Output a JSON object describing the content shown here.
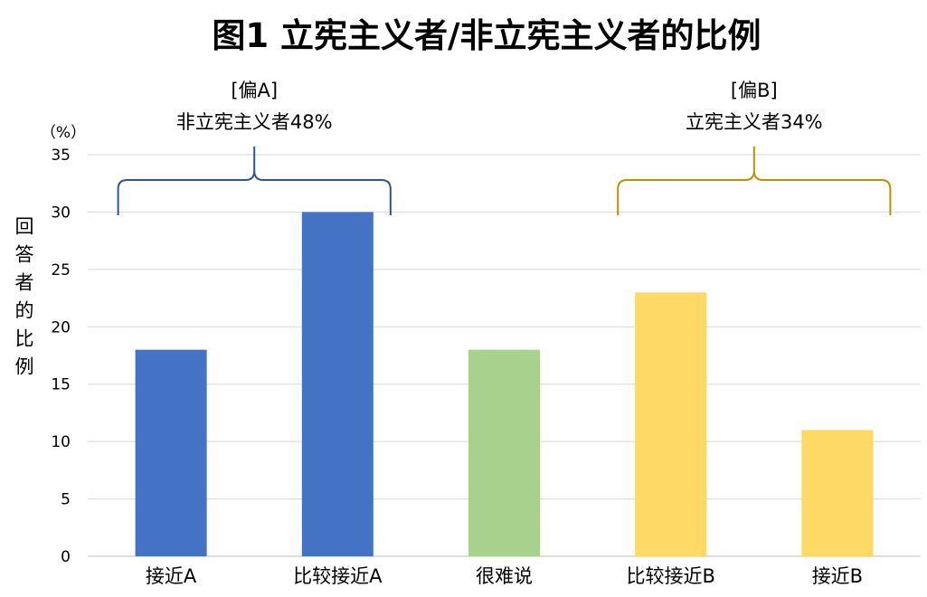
{
  "chart_data": {
    "type": "bar",
    "title": "图1  立宪主义者/非立宪主义者的比例",
    "ylabel": "回答者的比例",
    "y_unit": "（%）",
    "ylim": [
      0,
      35
    ],
    "yticks": [
      0,
      5,
      10,
      15,
      20,
      25,
      30,
      35
    ],
    "grid": true,
    "categories": [
      "接近A",
      "比较接近A",
      "很难说",
      "比较接近B",
      "接近B"
    ],
    "values": [
      18,
      30,
      18,
      23,
      11
    ],
    "bar_colors": [
      "#4472c4",
      "#4472c4",
      "#a9d18e",
      "#ffd966",
      "#ffd966"
    ],
    "groups": [
      {
        "label_line1": "[偏A]",
        "label_line2": "非立宪主义者48%",
        "covers": [
          "接近A",
          "比较接近A"
        ],
        "brace_color": "#2f5597"
      },
      {
        "label_line1": "[偏B]",
        "label_line2": "立宪主义者34%",
        "covers": [
          "比较接近B",
          "接近B"
        ],
        "brace_color": "#bf9000"
      }
    ]
  }
}
